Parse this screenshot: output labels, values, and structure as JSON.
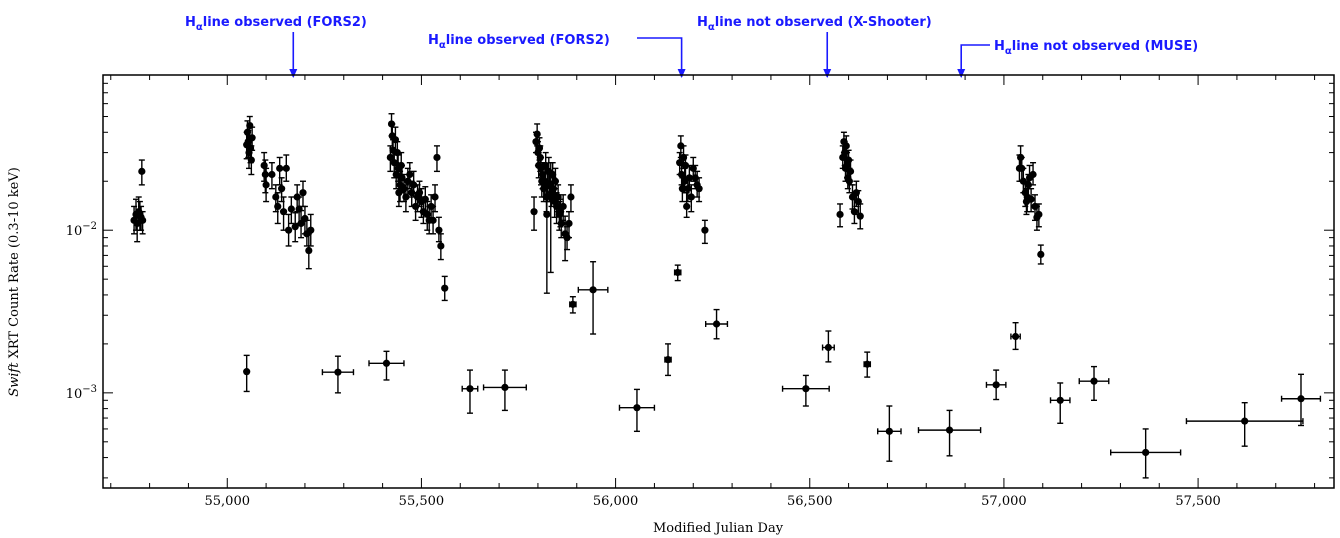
{
  "chart_data": {
    "type": "scatter",
    "xlabel": "Modified Julian Day",
    "ylabel_italic": "Swift",
    "ylabel_rest": " XRT Count Rate (0.3-10 keV)",
    "xlim": [
      54680,
      57850
    ],
    "ylim": [
      0.00026,
      0.09
    ],
    "yscale": "log",
    "x_ticks": [
      {
        "value": 55000,
        "label": "55,000"
      },
      {
        "value": 55500,
        "label": "55,500"
      },
      {
        "value": 56000,
        "label": "56,000"
      },
      {
        "value": 56500,
        "label": "56,500"
      },
      {
        "value": 57000,
        "label": "57,000"
      },
      {
        "value": 57500,
        "label": "57,500"
      }
    ],
    "y_ticks": [
      {
        "value": 0.01,
        "base": "10",
        "exp": "−2"
      },
      {
        "value": 0.001,
        "base": "10",
        "exp": "−3"
      }
    ],
    "annotations": [
      {
        "prefix": "H",
        "sub": "α",
        "text": "line observed (FORS2)",
        "x": 55170
      },
      {
        "prefix": "H",
        "sub": "α",
        "text": "line observed (FORS2)",
        "x": 56170
      },
      {
        "prefix": "H",
        "sub": "α",
        "text": "line not observed (X-Shooter)",
        "x": 56545
      },
      {
        "prefix": "H",
        "sub": "α",
        "text": "line not observed (MUSE)",
        "x": 56890
      }
    ],
    "points": [
      [
        54760,
        0.0115,
        0.0095,
        0.014,
        0
      ],
      [
        54765,
        0.0125,
        0.01,
        0.0155,
        0
      ],
      [
        54768,
        0.011,
        0.0085,
        0.013,
        0
      ],
      [
        54772,
        0.013,
        0.011,
        0.016,
        0
      ],
      [
        54775,
        0.0125,
        0.01,
        0.015,
        0
      ],
      [
        54778,
        0.012,
        0.01,
        0.014,
        0
      ],
      [
        54780,
        0.023,
        0.019,
        0.027,
        0
      ],
      [
        54782,
        0.0115,
        0.0095,
        0.013,
        0
      ],
      [
        55050,
        0.0335,
        0.0275,
        0.04,
        0
      ],
      [
        55052,
        0.04,
        0.033,
        0.047,
        0
      ],
      [
        55054,
        0.035,
        0.028,
        0.041,
        0
      ],
      [
        55056,
        0.03,
        0.024,
        0.036,
        0
      ],
      [
        55058,
        0.044,
        0.037,
        0.05,
        0
      ],
      [
        55060,
        0.032,
        0.026,
        0.038,
        0
      ],
      [
        55062,
        0.027,
        0.022,
        0.033,
        0
      ],
      [
        55064,
        0.037,
        0.031,
        0.043,
        0
      ],
      [
        55095,
        0.025,
        0.02,
        0.03,
        0
      ],
      [
        55098,
        0.022,
        0.017,
        0.027,
        0
      ],
      [
        55100,
        0.019,
        0.015,
        0.024,
        0
      ],
      [
        55115,
        0.022,
        0.018,
        0.026,
        0
      ],
      [
        55125,
        0.016,
        0.013,
        0.019,
        0
      ],
      [
        55130,
        0.014,
        0.011,
        0.017,
        0
      ],
      [
        55135,
        0.024,
        0.019,
        0.028,
        0
      ],
      [
        55140,
        0.018,
        0.015,
        0.021,
        0
      ],
      [
        55145,
        0.013,
        0.01,
        0.016,
        0
      ],
      [
        55152,
        0.024,
        0.02,
        0.029,
        0
      ],
      [
        55158,
        0.01,
        0.008,
        0.0125,
        0
      ],
      [
        55165,
        0.0135,
        0.011,
        0.016,
        0
      ],
      [
        55175,
        0.0105,
        0.0085,
        0.0128,
        0
      ],
      [
        55180,
        0.016,
        0.013,
        0.019,
        0
      ],
      [
        55185,
        0.0135,
        0.011,
        0.016,
        0
      ],
      [
        55190,
        0.011,
        0.009,
        0.0132,
        0
      ],
      [
        55195,
        0.017,
        0.014,
        0.02,
        0
      ],
      [
        55200,
        0.0118,
        0.0095,
        0.014,
        0
      ],
      [
        55205,
        0.0095,
        0.008,
        0.0115,
        0
      ],
      [
        55210,
        0.0075,
        0.0058,
        0.0095,
        0
      ],
      [
        55215,
        0.01,
        0.008,
        0.0125,
        0
      ],
      [
        55420,
        0.028,
        0.023,
        0.033,
        0
      ],
      [
        55423,
        0.045,
        0.038,
        0.052,
        0
      ],
      [
        55425,
        0.038,
        0.032,
        0.045,
        0
      ],
      [
        55427,
        0.031,
        0.026,
        0.036,
        0
      ],
      [
        55430,
        0.026,
        0.021,
        0.031,
        0
      ],
      [
        55433,
        0.036,
        0.03,
        0.043,
        0
      ],
      [
        55435,
        0.022,
        0.018,
        0.026,
        0
      ],
      [
        55438,
        0.03,
        0.025,
        0.035,
        0
      ],
      [
        55440,
        0.024,
        0.02,
        0.029,
        0
      ],
      [
        55442,
        0.017,
        0.014,
        0.021,
        0
      ],
      [
        55445,
        0.019,
        0.015,
        0.023,
        0
      ],
      [
        55448,
        0.025,
        0.021,
        0.03,
        0
      ],
      [
        55450,
        0.021,
        0.017,
        0.025,
        0
      ],
      [
        55455,
        0.018,
        0.015,
        0.022,
        0
      ],
      [
        55460,
        0.016,
        0.013,
        0.019,
        0
      ],
      [
        55465,
        0.02,
        0.016,
        0.024,
        0
      ],
      [
        55470,
        0.022,
        0.018,
        0.026,
        0
      ],
      [
        55475,
        0.017,
        0.014,
        0.02,
        0
      ],
      [
        55480,
        0.019,
        0.016,
        0.023,
        0
      ],
      [
        55485,
        0.014,
        0.0115,
        0.017,
        0
      ],
      [
        55490,
        0.016,
        0.013,
        0.019,
        0
      ],
      [
        55495,
        0.017,
        0.014,
        0.02,
        0
      ],
      [
        55500,
        0.015,
        0.012,
        0.018,
        0
      ],
      [
        55505,
        0.013,
        0.011,
        0.016,
        0
      ],
      [
        55510,
        0.0155,
        0.0125,
        0.0185,
        0
      ],
      [
        55515,
        0.0125,
        0.01,
        0.015,
        0
      ],
      [
        55520,
        0.0115,
        0.0095,
        0.014,
        0
      ],
      [
        55525,
        0.014,
        0.0115,
        0.0165,
        0
      ],
      [
        55530,
        0.0115,
        0.0095,
        0.014,
        0
      ],
      [
        55535,
        0.016,
        0.013,
        0.019,
        0
      ],
      [
        55540,
        0.028,
        0.023,
        0.033,
        0
      ],
      [
        55545,
        0.01,
        0.0085,
        0.012,
        0
      ],
      [
        55550,
        0.008,
        0.0066,
        0.0095,
        0
      ],
      [
        55560,
        0.0044,
        0.0037,
        0.0052,
        0
      ],
      [
        55790,
        0.013,
        0.01,
        0.016,
        0
      ],
      [
        55795,
        0.035,
        0.03,
        0.04,
        0
      ],
      [
        55798,
        0.039,
        0.033,
        0.045,
        0
      ],
      [
        55800,
        0.03,
        0.025,
        0.035,
        0
      ],
      [
        55802,
        0.025,
        0.021,
        0.03,
        0
      ],
      [
        55804,
        0.032,
        0.027,
        0.037,
        0
      ],
      [
        55806,
        0.028,
        0.023,
        0.033,
        0
      ],
      [
        55808,
        0.024,
        0.019,
        0.028,
        0
      ],
      [
        55810,
        0.02,
        0.016,
        0.024,
        0
      ],
      [
        55812,
        0.022,
        0.018,
        0.026,
        0
      ],
      [
        55815,
        0.018,
        0.015,
        0.022,
        0
      ],
      [
        55818,
        0.02,
        0.016,
        0.024,
        0
      ],
      [
        55820,
        0.025,
        0.02,
        0.03,
        0
      ],
      [
        55822,
        0.016,
        0.013,
        0.019,
        0
      ],
      [
        55823,
        0.0125,
        0.0041,
        0.018,
        0
      ],
      [
        55825,
        0.019,
        0.015,
        0.023,
        0
      ],
      [
        55828,
        0.023,
        0.019,
        0.028,
        0
      ],
      [
        55830,
        0.019,
        0.015,
        0.023,
        0
      ],
      [
        55833,
        0.016,
        0.0055,
        0.026,
        0
      ],
      [
        55835,
        0.017,
        0.014,
        0.02,
        0
      ],
      [
        55838,
        0.022,
        0.018,
        0.026,
        0
      ],
      [
        55840,
        0.018,
        0.015,
        0.021,
        0
      ],
      [
        55843,
        0.015,
        0.012,
        0.018,
        0
      ],
      [
        55845,
        0.02,
        0.016,
        0.024,
        0
      ],
      [
        55848,
        0.014,
        0.011,
        0.017,
        0
      ],
      [
        55852,
        0.016,
        0.013,
        0.019,
        0
      ],
      [
        55855,
        0.0125,
        0.01,
        0.015,
        0
      ],
      [
        55858,
        0.013,
        0.0105,
        0.0155,
        0
      ],
      [
        55860,
        0.011,
        0.009,
        0.013,
        0
      ],
      [
        55865,
        0.014,
        0.0115,
        0.0165,
        0
      ],
      [
        55870,
        0.0095,
        0.0065,
        0.0122,
        0
      ],
      [
        55875,
        0.009,
        0.0076,
        0.0105,
        0
      ],
      [
        55880,
        0.011,
        0.009,
        0.013,
        0
      ],
      [
        55885,
        0.016,
        0.013,
        0.019,
        0
      ],
      [
        55890,
        0.0035,
        0.0031,
        0.0039,
        8
      ],
      [
        55942,
        0.0043,
        0.0023,
        0.0064,
        38
      ],
      [
        56165,
        0.026,
        0.022,
        0.03,
        0
      ],
      [
        56168,
        0.033,
        0.028,
        0.038,
        0
      ],
      [
        56170,
        0.022,
        0.019,
        0.026,
        0
      ],
      [
        56172,
        0.018,
        0.015,
        0.021,
        0
      ],
      [
        56175,
        0.028,
        0.024,
        0.033,
        0
      ],
      [
        56178,
        0.02,
        0.017,
        0.024,
        0
      ],
      [
        56180,
        0.025,
        0.021,
        0.029,
        0
      ],
      [
        56183,
        0.014,
        0.012,
        0.017,
        0
      ],
      [
        56186,
        0.018,
        0.015,
        0.021,
        0
      ],
      [
        56190,
        0.021,
        0.018,
        0.025,
        0
      ],
      [
        56195,
        0.016,
        0.013,
        0.019,
        0
      ],
      [
        56200,
        0.024,
        0.02,
        0.028,
        0
      ],
      [
        56205,
        0.021,
        0.018,
        0.025,
        0
      ],
      [
        56210,
        0.019,
        0.016,
        0.023,
        0
      ],
      [
        56215,
        0.018,
        0.015,
        0.021,
        0
      ],
      [
        56230,
        0.01,
        0.0083,
        0.0115,
        0
      ],
      [
        56160,
        0.0055,
        0.0049,
        0.0061,
        8
      ],
      [
        56578,
        0.0125,
        0.0105,
        0.0145,
        0
      ],
      [
        56585,
        0.028,
        0.024,
        0.033,
        0
      ],
      [
        56588,
        0.035,
        0.03,
        0.04,
        0
      ],
      [
        56590,
        0.03,
        0.025,
        0.035,
        0
      ],
      [
        56592,
        0.024,
        0.02,
        0.028,
        0
      ],
      [
        56594,
        0.033,
        0.028,
        0.038,
        0
      ],
      [
        56596,
        0.025,
        0.021,
        0.03,
        0
      ],
      [
        56598,
        0.021,
        0.018,
        0.025,
        0
      ],
      [
        56600,
        0.027,
        0.023,
        0.031,
        0
      ],
      [
        56602,
        0.02,
        0.017,
        0.024,
        0
      ],
      [
        56605,
        0.023,
        0.019,
        0.027,
        0
      ],
      [
        56610,
        0.016,
        0.0135,
        0.019,
        0
      ],
      [
        56615,
        0.013,
        0.011,
        0.0155,
        0
      ],
      [
        56620,
        0.017,
        0.014,
        0.02,
        0
      ],
      [
        56625,
        0.015,
        0.0125,
        0.0175,
        0
      ],
      [
        56630,
        0.0122,
        0.0102,
        0.0145,
        0
      ],
      [
        57040,
        0.024,
        0.02,
        0.029,
        0
      ],
      [
        57043,
        0.028,
        0.024,
        0.033,
        0
      ],
      [
        57046,
        0.024,
        0.02,
        0.028,
        0
      ],
      [
        57050,
        0.02,
        0.017,
        0.024,
        0
      ],
      [
        57055,
        0.017,
        0.014,
        0.02,
        0
      ],
      [
        57058,
        0.015,
        0.0125,
        0.018,
        0
      ],
      [
        57060,
        0.016,
        0.013,
        0.019,
        0
      ],
      [
        57063,
        0.019,
        0.016,
        0.022,
        0
      ],
      [
        57066,
        0.021,
        0.018,
        0.025,
        0
      ],
      [
        57070,
        0.0155,
        0.013,
        0.018,
        0
      ],
      [
        57075,
        0.022,
        0.019,
        0.026,
        0
      ],
      [
        57080,
        0.014,
        0.0115,
        0.0165,
        0
      ],
      [
        57085,
        0.012,
        0.01,
        0.014,
        0
      ],
      [
        57090,
        0.0125,
        0.0105,
        0.0145,
        0
      ],
      [
        57095,
        0.0071,
        0.0062,
        0.0081,
        0
      ],
      [
        55050,
        0.00135,
        0.00102,
        0.0017,
        0
      ],
      [
        55285,
        0.00134,
        0.001,
        0.00168,
        40
      ],
      [
        55410,
        0.00152,
        0.0012,
        0.0018,
        45
      ],
      [
        55625,
        0.00106,
        0.00075,
        0.00138,
        20
      ],
      [
        55715,
        0.00108,
        0.00078,
        0.00138,
        55
      ],
      [
        56055,
        0.00081,
        0.00058,
        0.00105,
        45
      ],
      [
        56135,
        0.0016,
        0.00128,
        0.002,
        8
      ],
      [
        56260,
        0.00265,
        0.00215,
        0.00325,
        28
      ],
      [
        56490,
        0.00106,
        0.00083,
        0.00128,
        60
      ],
      [
        56548,
        0.0019,
        0.00155,
        0.0024,
        15
      ],
      [
        56648,
        0.0015,
        0.00125,
        0.00178,
        8
      ],
      [
        56705,
        0.00058,
        0.00038,
        0.00083,
        30
      ],
      [
        56860,
        0.00059,
        0.00041,
        0.00078,
        80
      ],
      [
        56980,
        0.00112,
        0.00091,
        0.00138,
        25
      ],
      [
        57030,
        0.00222,
        0.00185,
        0.0027,
        12
      ],
      [
        57145,
        0.0009,
        0.00065,
        0.00115,
        25
      ],
      [
        57232,
        0.00118,
        0.0009,
        0.00145,
        38
      ],
      [
        57365,
        0.00043,
        0.0003,
        0.0006,
        90
      ],
      [
        57620,
        0.00067,
        0.00047,
        0.00087,
        150
      ],
      [
        57765,
        0.00092,
        0.00063,
        0.0013,
        50
      ]
    ]
  }
}
